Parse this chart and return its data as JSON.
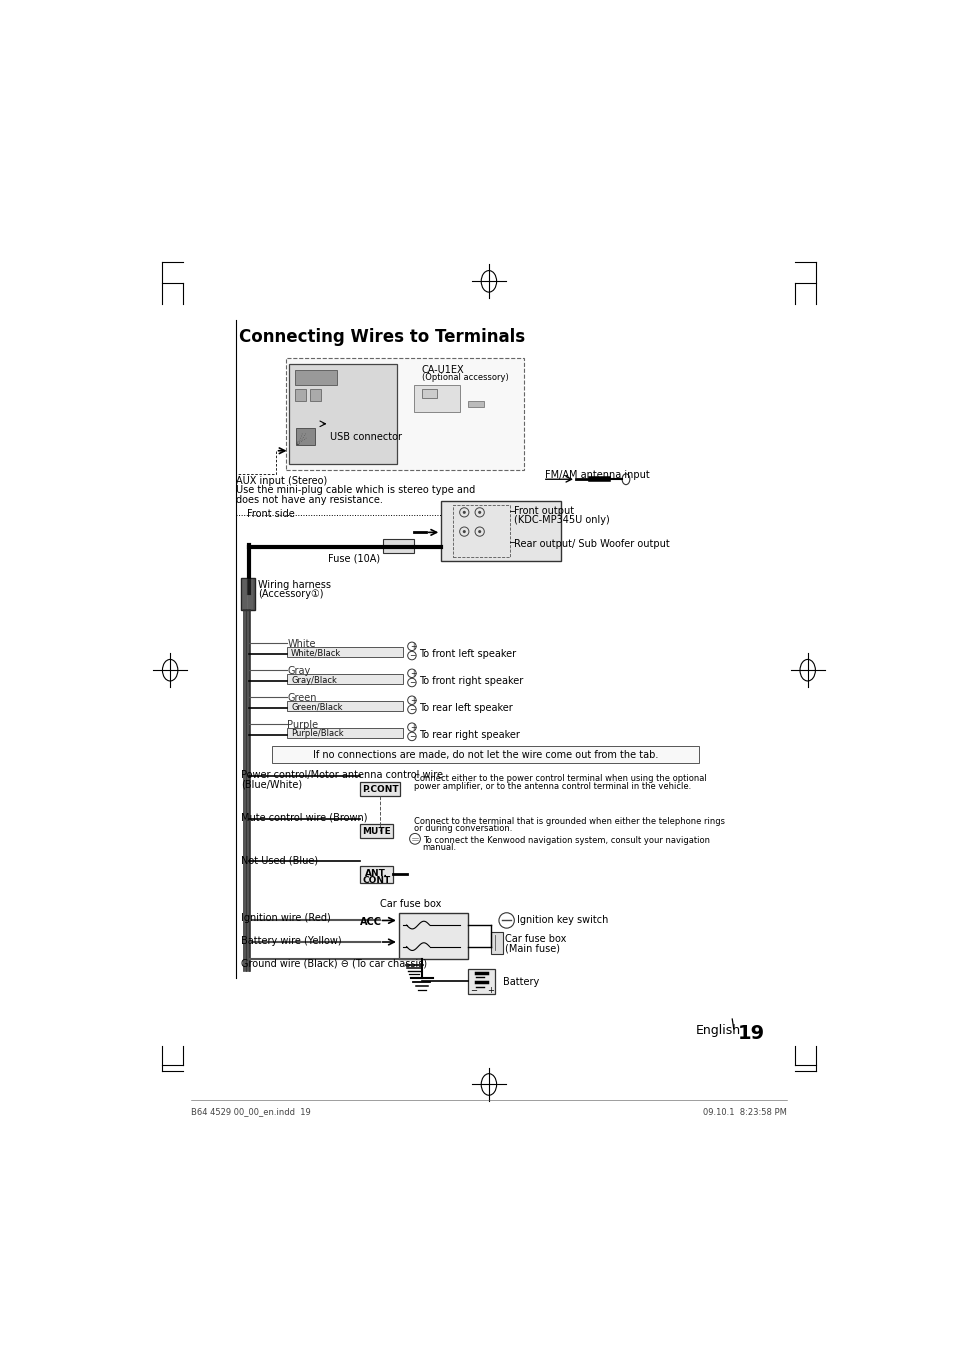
{
  "title": "Connecting Wires to Terminals",
  "page_number": "19",
  "background_color": "#ffffff",
  "footer_left": "B64 4529 00_00_en.indd  19",
  "footer_right": "09.10.1  8:23:58 PM",
  "title_fontsize": 12,
  "body_fontsize": 7,
  "small_fontsize": 6,
  "wire_pairs": [
    {
      "top": "White",
      "bottom": "White/Black",
      "dest": "To front left speaker"
    },
    {
      "top": "Gray",
      "bottom": "Gray/Black",
      "dest": "To front right speaker"
    },
    {
      "top": "Green",
      "bottom": "Green/Black",
      "dest": "To rear left speaker"
    },
    {
      "top": "Purple",
      "bottom": "Purple/Black",
      "dest": "To rear right speaker"
    }
  ]
}
